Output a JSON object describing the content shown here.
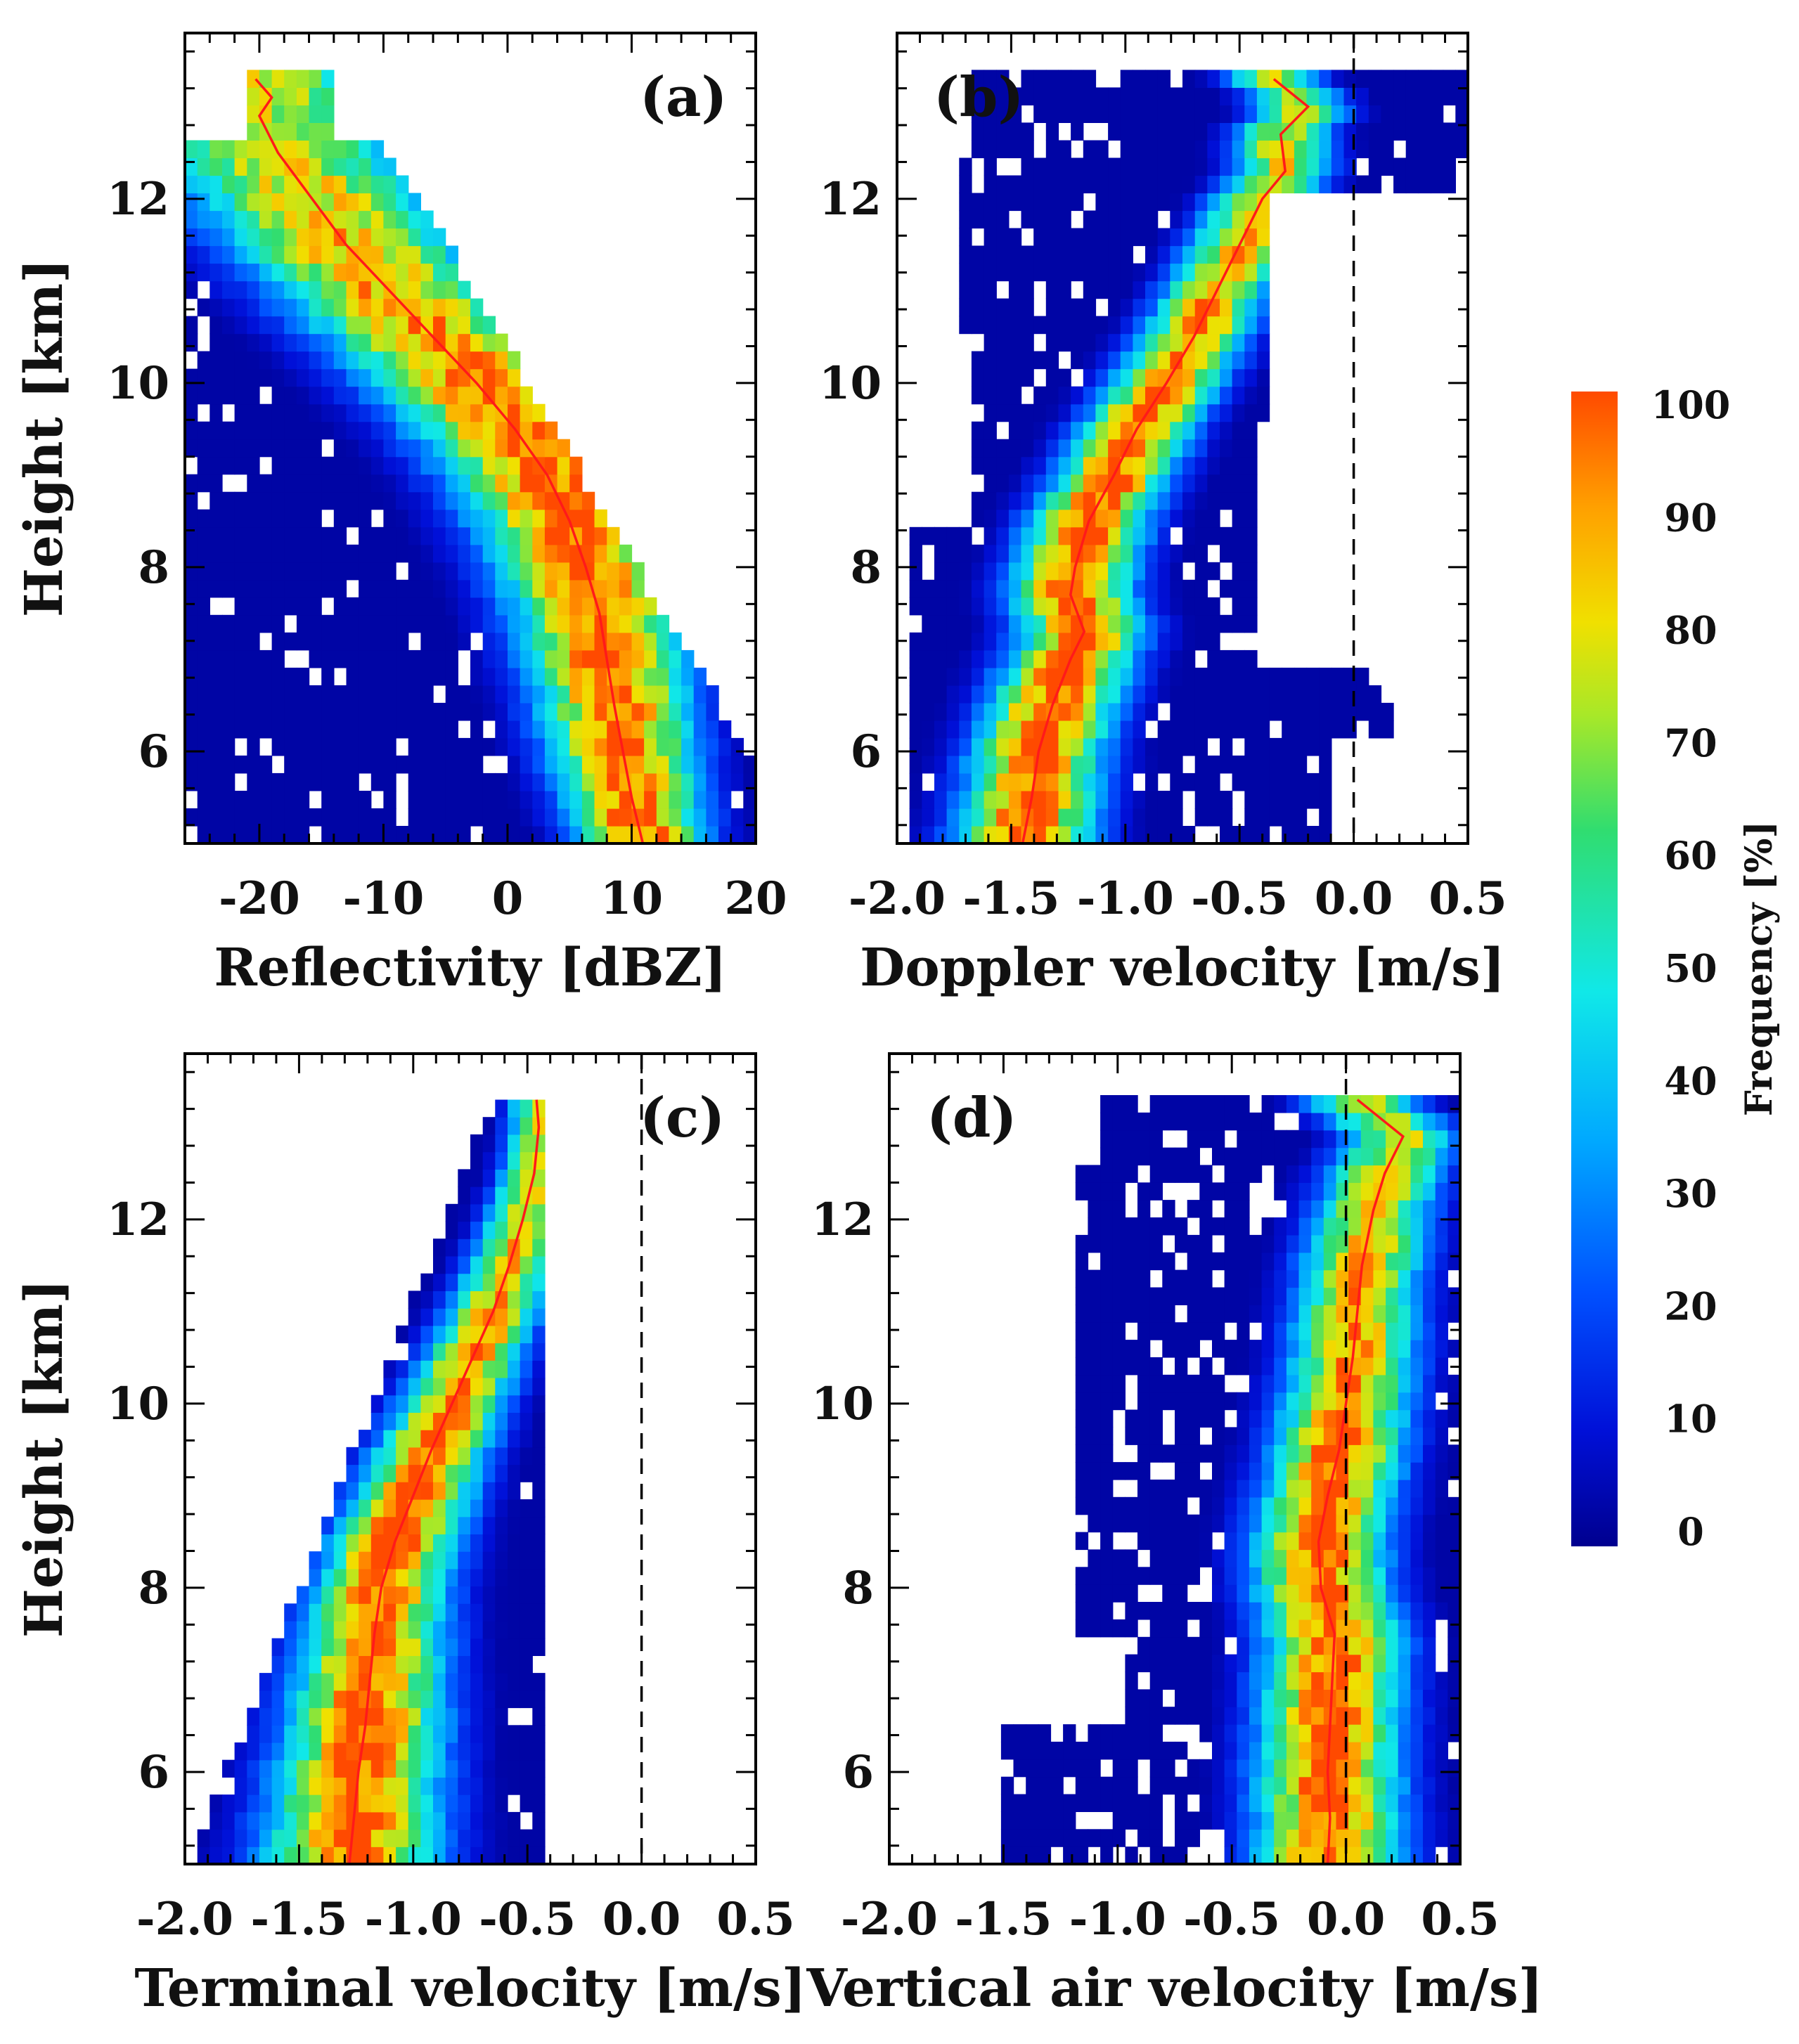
{
  "figure": {
    "colorbar": {
      "label": "Frequency [%]",
      "ticks": [
        "0",
        "10",
        "20",
        "30",
        "40",
        "50",
        "60",
        "70",
        "80",
        "90",
        "100"
      ],
      "range": [
        0,
        100
      ]
    }
  },
  "chart_data": [
    {
      "type": "heatmap",
      "panel": "(a)",
      "xlabel": "Reflectivity [dBZ]",
      "ylabel": "Height [km]",
      "xlim": [
        -26,
        20
      ],
      "ylim": [
        5.0,
        13.8
      ],
      "xticks": [
        "-20",
        "-10",
        "0",
        "10",
        "20"
      ],
      "yticks": [
        "6",
        "8",
        "10",
        "12"
      ],
      "zero_line": false,
      "mean_profile": {
        "height_km": [
          13.3,
          13.1,
          12.9,
          12.5,
          12.1,
          11.5,
          11.0,
          10.5,
          10.0,
          9.5,
          9.0,
          8.5,
          8.0,
          7.5,
          7.0,
          6.5,
          6.0,
          5.5,
          5.0
        ],
        "value": [
          -20.3,
          -19.0,
          -20.0,
          -18.5,
          -16.3,
          -13.0,
          -9.5,
          -6.0,
          -2.5,
          0.6,
          3.2,
          5.0,
          6.3,
          7.4,
          8.0,
          8.6,
          9.3,
          10.0,
          10.9
        ]
      }
    },
    {
      "type": "heatmap",
      "panel": "(b)",
      "xlabel": "Doppler velocity [m/s]",
      "ylabel": "",
      "xlim": [
        -2.0,
        0.5
      ],
      "ylim": [
        5.0,
        13.8
      ],
      "xticks": [
        "-2.0",
        "-1.5",
        "-1.0",
        "-0.5",
        "0.0",
        "0.5"
      ],
      "yticks": [
        "6",
        "8",
        "10",
        "12"
      ],
      "zero_line": true,
      "mean_profile": {
        "height_km": [
          13.3,
          13.0,
          12.7,
          12.3,
          12.0,
          11.5,
          11.0,
          10.5,
          10.0,
          9.5,
          9.0,
          8.5,
          8.0,
          7.7,
          7.3,
          7.0,
          6.5,
          6.0,
          5.5,
          5.0
        ],
        "value": [
          -0.35,
          -0.2,
          -0.32,
          -0.3,
          -0.4,
          -0.5,
          -0.6,
          -0.7,
          -0.82,
          -0.95,
          -1.05,
          -1.16,
          -1.22,
          -1.24,
          -1.18,
          -1.24,
          -1.32,
          -1.38,
          -1.41,
          -1.45
        ]
      }
    },
    {
      "type": "heatmap",
      "panel": "(c)",
      "xlabel": "Terminal velocity [m/s]",
      "ylabel": "Height [km]",
      "xlim": [
        -2.0,
        0.5
      ],
      "ylim": [
        5.0,
        13.8
      ],
      "xticks": [
        "-2.0",
        "-1.5",
        "-1.0",
        "-0.5",
        "0.0",
        "0.5"
      ],
      "yticks": [
        "6",
        "8",
        "10",
        "12"
      ],
      "zero_line": true,
      "mean_profile": {
        "height_km": [
          13.3,
          13.0,
          12.5,
          12.0,
          11.5,
          11.0,
          10.5,
          10.0,
          9.5,
          9.0,
          8.5,
          8.0,
          7.5,
          7.0,
          6.5,
          6.0,
          5.5,
          5.0
        ],
        "value": [
          -0.46,
          -0.45,
          -0.47,
          -0.52,
          -0.58,
          -0.65,
          -0.74,
          -0.83,
          -0.92,
          -1.0,
          -1.08,
          -1.14,
          -1.17,
          -1.19,
          -1.21,
          -1.24,
          -1.26,
          -1.28
        ]
      }
    },
    {
      "type": "heatmap",
      "panel": "(d)",
      "xlabel": "Vertical air velocity [m/s]",
      "ylabel": "",
      "xlim": [
        -2.0,
        0.5
      ],
      "ylim": [
        5.0,
        13.8
      ],
      "xticks": [
        "-2.0",
        "-1.5",
        "-1.0",
        "-0.5",
        "0.0",
        "0.5"
      ],
      "yticks": [
        "6",
        "8",
        "10",
        "12"
      ],
      "zero_line": true,
      "mean_profile": {
        "height_km": [
          13.3,
          13.1,
          12.9,
          12.5,
          12.1,
          11.5,
          11.0,
          10.5,
          10.0,
          9.5,
          9.0,
          8.5,
          8.0,
          7.5,
          7.0,
          6.5,
          6.0,
          5.5,
          5.0
        ],
        "value": [
          0.05,
          0.15,
          0.25,
          0.17,
          0.12,
          0.07,
          0.05,
          0.03,
          0.0,
          -0.03,
          -0.08,
          -0.12,
          -0.11,
          -0.05,
          -0.06,
          -0.07,
          -0.08,
          -0.07,
          -0.08
        ]
      }
    }
  ]
}
